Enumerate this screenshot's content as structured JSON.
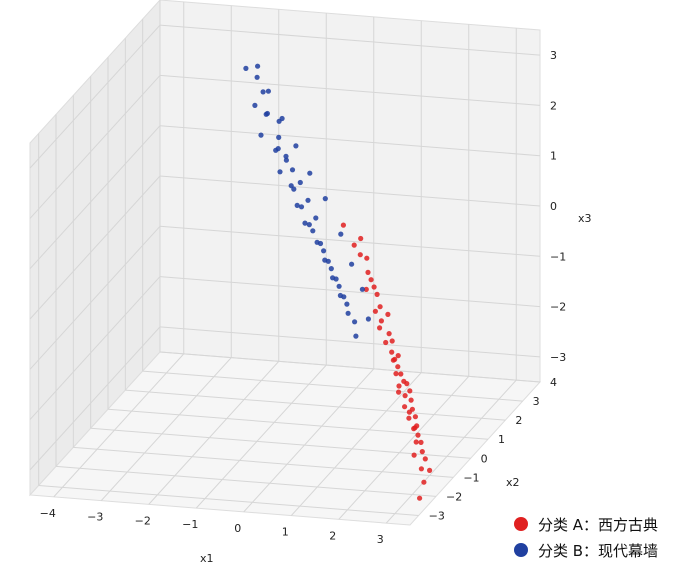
{
  "chart_data": {
    "type": "scatter",
    "projection": "3d",
    "title": "",
    "xlabel": "x1",
    "ylabel": "x2",
    "zlabel": "x3",
    "xlim": [
      -4.5,
      3.5
    ],
    "ylim": [
      -3.5,
      4
    ],
    "zlim": [
      -3.5,
      3.5
    ],
    "x_ticks": [
      "−4",
      "−3",
      "−2",
      "−1",
      "0",
      "1",
      "2",
      "3"
    ],
    "y_ticks": [
      "−3",
      "−2",
      "−1",
      "0",
      "1",
      "2",
      "3",
      "4"
    ],
    "z_ticks": [
      "−3",
      "−2",
      "−1",
      "0",
      "1",
      "2",
      "3"
    ],
    "grid": true,
    "legend_position": "bottom-right",
    "series": [
      {
        "name": "分类 A：西方古典",
        "color": "#e02020",
        "x": [
          -0.2,
          0.1,
          0.3,
          0.5,
          0.4,
          0.6,
          0.8,
          0.2,
          0.9,
          1.1,
          0.7,
          1.0,
          1.2,
          0.5,
          0.8,
          1.3,
          1.5,
          1.0,
          1.4,
          1.6,
          1.2,
          1.8,
          1.7,
          1.5,
          2.0,
          1.9,
          2.1,
          1.6,
          2.2,
          2.3,
          1.8,
          2.4,
          2.0,
          2.5,
          2.2,
          2.6,
          2.8,
          2.4,
          2.7,
          3.0,
          1.4,
          1.9,
          2.1,
          2.3,
          1.7,
          2.5,
          2.9,
          2.6,
          3.1,
          3.3
        ],
        "y": [
          2.8,
          2.6,
          2.4,
          2.3,
          2.5,
          2.2,
          2.0,
          2.7,
          1.9,
          1.8,
          2.1,
          1.7,
          1.6,
          2.2,
          1.9,
          1.5,
          1.3,
          1.6,
          1.2,
          1.0,
          1.4,
          0.8,
          0.9,
          1.1,
          0.6,
          0.7,
          0.4,
          0.9,
          0.2,
          0.1,
          0.5,
          -0.1,
          0.3,
          -0.3,
          0.0,
          -0.4,
          -0.7,
          -0.2,
          -0.6,
          -1.0,
          1.3,
          0.6,
          0.3,
          0.0,
          0.8,
          -0.4,
          -1.2,
          -0.8,
          -1.6,
          -2.4
        ],
        "z": [
          -0.2,
          -0.5,
          -0.6,
          -0.9,
          -0.7,
          -1.0,
          -1.2,
          -0.4,
          -1.4,
          -1.5,
          -1.1,
          -1.6,
          -1.8,
          -1.2,
          -1.5,
          -1.9,
          -2.1,
          -1.7,
          -2.0,
          -2.2,
          -1.9,
          -2.4,
          -2.3,
          -2.1,
          -2.5,
          -2.4,
          -2.6,
          -2.3,
          -2.7,
          -2.8,
          -2.5,
          -2.9,
          -2.7,
          -3.0,
          -2.8,
          -3.1,
          -3.3,
          -2.9,
          -3.2,
          -3.4,
          -2.2,
          -2.6,
          -2.8,
          -3.0,
          -2.5,
          -3.1,
          -3.3,
          -3.2,
          -3.4,
          -3.4
        ]
      },
      {
        "name": "分类 B：现代幕墙",
        "color": "#2040a0",
        "x": [
          -2.4,
          -2.2,
          -2.0,
          -2.1,
          -1.9,
          -1.8,
          -1.7,
          -1.9,
          -1.6,
          -1.5,
          -1.7,
          -1.4,
          -1.3,
          -1.5,
          -1.2,
          -1.1,
          -1.3,
          -1.0,
          -0.9,
          -1.1,
          -0.8,
          -0.7,
          -0.9,
          -0.6,
          -0.5,
          -0.7,
          -0.4,
          -0.3,
          -0.5,
          -0.2,
          -0.1,
          -0.3,
          0.0,
          0.1,
          -0.1,
          0.2,
          0.3,
          0.1,
          0.4,
          0.5,
          -2.3,
          -2.0,
          -1.6,
          -1.2,
          -0.8,
          -0.4,
          0.0,
          0.3,
          0.6,
          0.8
        ],
        "y": [
          3.2,
          3.3,
          3.1,
          2.9,
          3.0,
          2.8,
          3.2,
          2.7,
          2.9,
          2.6,
          3.0,
          2.8,
          2.5,
          2.7,
          2.6,
          2.4,
          2.8,
          2.5,
          2.3,
          2.6,
          2.4,
          2.2,
          2.5,
          2.3,
          2.1,
          2.4,
          2.2,
          2.0,
          2.3,
          2.1,
          1.9,
          2.2,
          2.0,
          1.8,
          2.1,
          1.9,
          1.7,
          2.0,
          1.8,
          1.6,
          3.6,
          3.4,
          3.1,
          2.8,
          2.5,
          2.3,
          2.1,
          1.9,
          1.7,
          1.5
        ],
        "z": [
          2.6,
          2.4,
          2.2,
          2.0,
          1.8,
          1.9,
          1.6,
          1.5,
          1.4,
          1.3,
          1.1,
          1.0,
          1.2,
          0.8,
          0.9,
          0.6,
          0.5,
          0.7,
          0.3,
          0.2,
          0.4,
          0.0,
          -0.1,
          0.1,
          -0.3,
          -0.2,
          -0.5,
          -0.6,
          -0.4,
          -0.8,
          -0.9,
          -0.7,
          -1.1,
          -1.2,
          -1.0,
          -1.4,
          -1.5,
          -1.3,
          -1.7,
          -1.9,
          2.5,
          2.1,
          1.7,
          1.3,
          0.9,
          0.5,
          -0.1,
          -0.6,
          -1.0,
          -1.5
        ]
      }
    ]
  }
}
